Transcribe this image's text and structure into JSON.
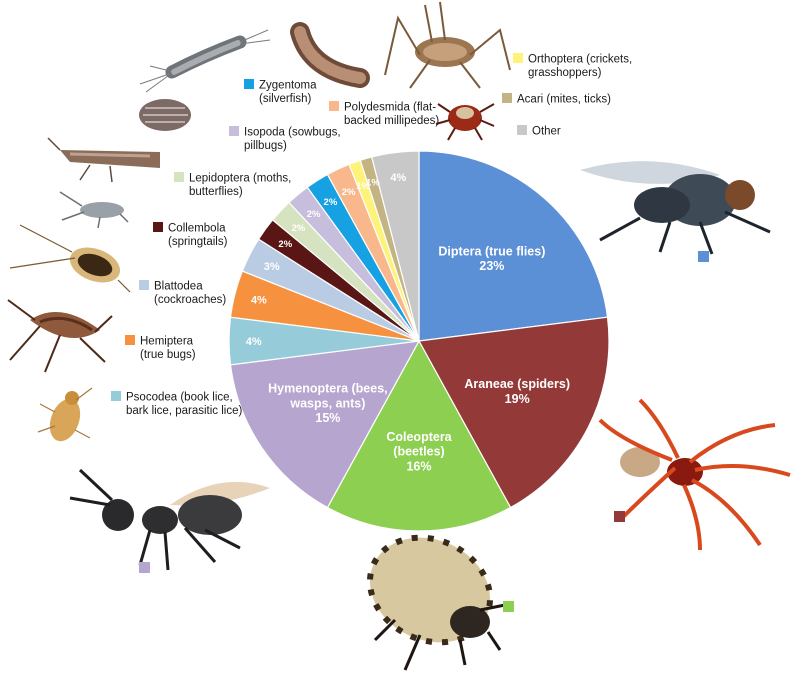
{
  "chart_data": {
    "type": "pie",
    "start_angle_deg": 0,
    "direction": "clockwise",
    "slices": [
      {
        "name": "Diptera (true flies)",
        "value": 23,
        "label": "23%",
        "color": "#5b8fd6"
      },
      {
        "name": "Araneae (spiders)",
        "value": 19,
        "label": "19%",
        "color": "#933a38"
      },
      {
        "name": "Coleoptera (beetles)",
        "value": 16,
        "label": "16%",
        "color": "#8dcf50"
      },
      {
        "name": "Hymenoptera (bees, wasps, ants)",
        "value": 15,
        "label": "15%",
        "color": "#b6a6cf"
      },
      {
        "name": "Psocodea (book lice, bark lice, parasitic lice)",
        "value": 4,
        "label": "4%",
        "color": "#96ccd9"
      },
      {
        "name": "Hemiptera (true bugs)",
        "value": 4,
        "label": "4%",
        "color": "#f6913f"
      },
      {
        "name": "Blattodea (cockroaches)",
        "value": 3,
        "label": "3%",
        "color": "#b9cce3"
      },
      {
        "name": "Collembola (springtails)",
        "value": 2,
        "label": "2%",
        "color": "#5a1515"
      },
      {
        "name": "Lepidoptera (moths, butterflies)",
        "value": 2,
        "label": "2%",
        "color": "#d5e3c0"
      },
      {
        "name": "Isopoda (sowbugs, pillbugs)",
        "value": 2,
        "label": "2%",
        "color": "#c7bddc"
      },
      {
        "name": "Zygentoma (silverfish)",
        "value": 2,
        "label": "2%",
        "color": "#16a1e3"
      },
      {
        "name": "Polydesmida (flat-backed millipedes)",
        "value": 2,
        "label": "2%",
        "color": "#f9b88c"
      },
      {
        "name": "Orthoptera (crickets, grasshoppers)",
        "value": 1,
        "label": "1%",
        "color": "#fdf27a"
      },
      {
        "name": "Acari (mites, ticks)",
        "value": 1,
        "label": "1%",
        "color": "#c4b383"
      },
      {
        "name": "Other",
        "value": 4,
        "label": "4%",
        "color": "#c8c8c8"
      }
    ],
    "in_slice_labels": [
      {
        "lines": [
          "Diptera (true flies)",
          "23%"
        ]
      },
      {
        "lines": [
          "Araneae (spiders)",
          "19%"
        ]
      },
      {
        "lines": [
          "Coleoptera",
          "(beetles)",
          "16%"
        ]
      },
      {
        "lines": [
          "Hymenoptera (bees,",
          "wasps, ants)",
          "15%"
        ]
      },
      {
        "lines": [
          "4%"
        ]
      },
      {
        "lines": [
          "4%"
        ]
      },
      {
        "lines": [
          "3%"
        ]
      },
      {
        "lines": [
          "2%"
        ]
      },
      {
        "lines": [
          "2%"
        ]
      },
      {
        "lines": [
          "2%"
        ]
      },
      {
        "lines": [
          "2%"
        ]
      },
      {
        "lines": [
          "2%"
        ]
      },
      {
        "lines": [
          "1%"
        ]
      },
      {
        "lines": [
          "1%"
        ]
      },
      {
        "lines": [
          "4%"
        ]
      }
    ],
    "legend": [
      {
        "lines": [
          "Zygentoma",
          "(silverfish)"
        ],
        "color": "#16a1e3"
      },
      {
        "lines": [
          "Polydesmida (flat-",
          "backed millipedes)"
        ],
        "color": "#f9b88c"
      },
      {
        "lines": [
          "Orthoptera (crickets,",
          "grasshoppers)"
        ],
        "color": "#fdf27a"
      },
      {
        "lines": [
          "Acari (mites, ticks)"
        ],
        "color": "#c4b383"
      },
      {
        "lines": [
          "Other"
        ],
        "color": "#c8c8c8"
      },
      {
        "lines": [
          "Isopoda (sowbugs,",
          "pillbugs)"
        ],
        "color": "#c7bddc"
      },
      {
        "lines": [
          "Lepidoptera (moths,",
          "butterflies)"
        ],
        "color": "#d5e3c0"
      },
      {
        "lines": [
          "Collembola",
          "(springtails)"
        ],
        "color": "#5a1515"
      },
      {
        "lines": [
          "Blattodea",
          "(cockroaches)"
        ],
        "color": "#b9cce3"
      },
      {
        "lines": [
          "Hemiptera",
          "(true bugs)"
        ],
        "color": "#f6913f"
      },
      {
        "lines": [
          "Psocodea (book lice,",
          "bark lice, parasitic lice)"
        ],
        "color": "#96ccd9"
      }
    ],
    "photo_markers": [
      {
        "subject": "fly",
        "color": "#5b8fd6"
      },
      {
        "subject": "spider",
        "color": "#933a38"
      },
      {
        "subject": "beetle",
        "color": "#8dcf50"
      },
      {
        "subject": "ant",
        "color": "#b6a6cf"
      }
    ]
  }
}
